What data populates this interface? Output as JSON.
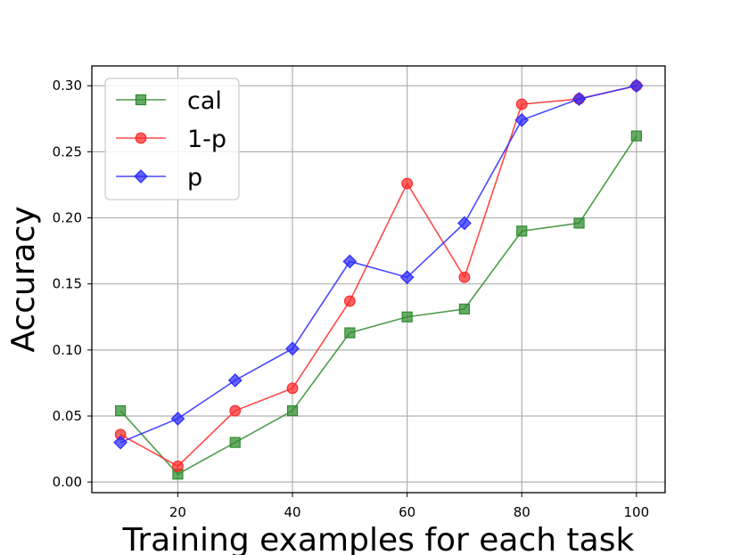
{
  "chart_data": {
    "type": "line",
    "x": [
      10,
      20,
      30,
      40,
      50,
      60,
      70,
      80,
      90,
      100
    ],
    "series": [
      {
        "name": "cal",
        "color": "#2e8b2e",
        "marker": "square",
        "values": [
          0.054,
          0.006,
          0.03,
          0.054,
          0.113,
          0.125,
          0.131,
          0.19,
          0.196,
          0.262
        ]
      },
      {
        "name": "1-p",
        "color": "#ff2a2a",
        "marker": "circle",
        "values": [
          0.036,
          0.012,
          0.054,
          0.071,
          0.137,
          0.226,
          0.155,
          0.286,
          0.29,
          0.3
        ]
      },
      {
        "name": "p",
        "color": "#2a2aff",
        "marker": "diamond",
        "values": [
          0.03,
          0.048,
          0.077,
          0.101,
          0.167,
          0.155,
          0.196,
          0.274,
          0.29,
          0.3
        ]
      }
    ],
    "xlabel": "Training examples for each task",
    "ylabel": "Accuracy",
    "xlim": [
      5,
      105
    ],
    "ylim": [
      -0.008,
      0.315
    ],
    "xticks": [
      20,
      40,
      60,
      80,
      100
    ],
    "xtick_labels": [
      "20",
      "40",
      "60",
      "80",
      "100"
    ],
    "yticks": [
      0.0,
      0.05,
      0.1,
      0.15,
      0.2,
      0.25,
      0.3
    ],
    "ytick_labels": [
      "0.00",
      "0.05",
      "0.10",
      "0.15",
      "0.20",
      "0.25",
      "0.30"
    ],
    "grid": true,
    "legend_position": "top-left"
  }
}
